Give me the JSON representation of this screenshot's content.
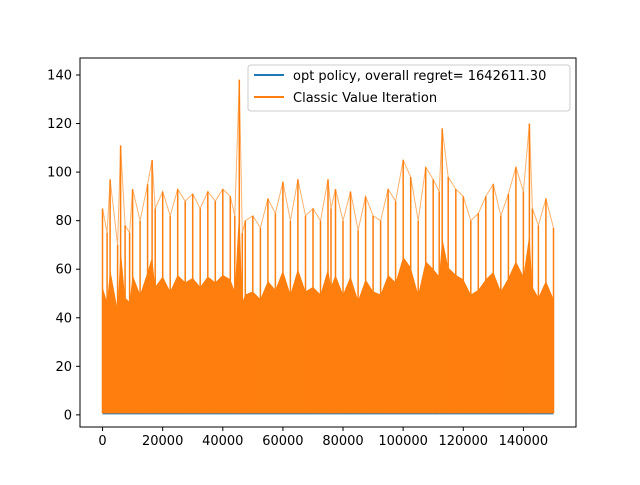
{
  "chart_data": {
    "type": "line",
    "title": "",
    "xlabel": "",
    "ylabel": "",
    "xlim": [
      -7500,
      157500
    ],
    "ylim": [
      -5,
      147
    ],
    "x_ticks": [
      0,
      20000,
      40000,
      60000,
      80000,
      100000,
      120000,
      140000
    ],
    "y_ticks": [
      0,
      20,
      40,
      60,
      80,
      100,
      120,
      140
    ],
    "grid": false,
    "legend_position": "top-right",
    "series": [
      {
        "name": "opt policy, overall regret= 1642611.30",
        "color": "#1f77b4",
        "x": [
          0,
          150000
        ],
        "y": [
          0.5,
          0.5
        ]
      },
      {
        "name": "Classic Value Iteration",
        "color": "#ff7f0e",
        "fill_baseline": 0.6,
        "x": [
          0,
          1500,
          2500,
          5000,
          6000,
          7500,
          9000,
          10000,
          12500,
          15000,
          16500,
          17500,
          20000,
          22500,
          25000,
          27500,
          30000,
          32500,
          35000,
          37500,
          40000,
          42500,
          44000,
          45500,
          46500,
          47500,
          50000,
          52500,
          55000,
          57500,
          60000,
          62500,
          65000,
          67500,
          70000,
          72500,
          75000,
          76000,
          77500,
          80000,
          82500,
          85000,
          87500,
          90000,
          92500,
          95000,
          97500,
          100000,
          102500,
          105000,
          107500,
          110000,
          112000,
          113000,
          115000,
          117500,
          120000,
          122500,
          125000,
          127500,
          130000,
          132500,
          135000,
          137500,
          140000,
          142000,
          143000,
          145000,
          147500,
          150000
        ],
        "y": [
          85,
          75,
          97,
          70,
          111,
          78,
          75,
          93,
          80,
          95,
          105,
          85,
          92,
          82,
          93,
          88,
          91,
          85,
          92,
          88,
          93,
          90,
          82,
          138,
          75,
          80,
          82,
          77,
          89,
          83,
          96,
          80,
          97,
          82,
          85,
          80,
          97,
          85,
          93,
          80,
          92,
          76,
          90,
          82,
          80,
          93,
          88,
          105,
          98,
          80,
          102,
          97,
          92,
          118,
          98,
          93,
          90,
          80,
          83,
          90,
          95,
          82,
          91,
          102,
          92,
          120,
          85,
          78,
          89,
          77
        ]
      }
    ]
  }
}
